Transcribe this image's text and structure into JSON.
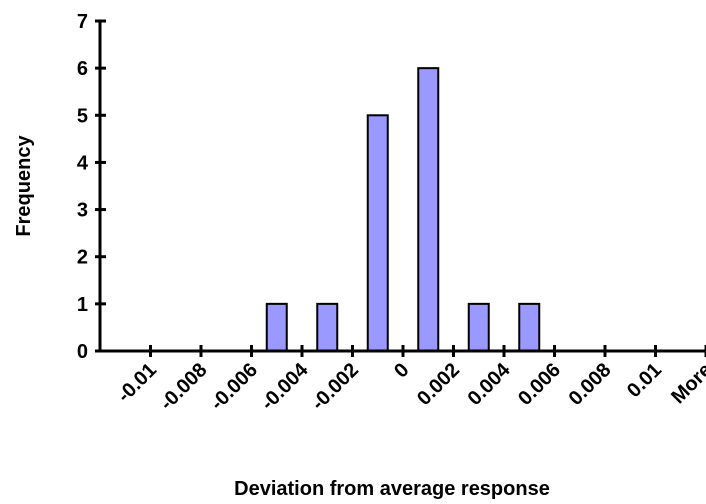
{
  "chart_data": {
    "type": "bar",
    "title": "",
    "xlabel": "Deviation from average response",
    "ylabel": "Frequency",
    "categories": [
      "-0.01",
      "-0.008",
      "-0.006",
      "-0.004",
      "-0.002",
      "0",
      "0.002",
      "0.004",
      "0.006",
      "0.008",
      "0.01",
      "More"
    ],
    "values": [
      0,
      0,
      0,
      1,
      1,
      5,
      6,
      1,
      1,
      0,
      0,
      0
    ],
    "yticks": [
      "0",
      "1",
      "2",
      "3",
      "4",
      "5",
      "6",
      "7"
    ],
    "ylim": [
      0,
      7
    ],
    "grid": false,
    "legend": "none",
    "bar_color": "#9999ff",
    "bar_edge_color": "#000000"
  }
}
